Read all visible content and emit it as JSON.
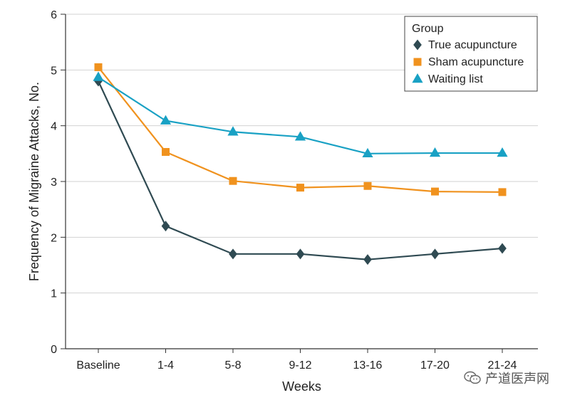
{
  "chart_data": {
    "type": "line",
    "xlabel": "Weeks",
    "ylabel": "Frequency of Migraine Attacks, No.",
    "ylim": [
      0,
      6
    ],
    "yticks": [
      0,
      1,
      2,
      3,
      4,
      5,
      6
    ],
    "grid": "horizontal",
    "categories": [
      "Baseline",
      "1-4",
      "5-8",
      "9-12",
      "13-16",
      "17-20",
      "21-24"
    ],
    "legend": {
      "title": "Group",
      "position": "top-right"
    },
    "series": [
      {
        "name": "True acupuncture",
        "marker": "diamond",
        "color": "#2f4a52",
        "values": [
          4.8,
          2.2,
          1.7,
          1.7,
          1.6,
          1.7,
          1.8
        ]
      },
      {
        "name": "Sham acupuncture",
        "marker": "square",
        "color": "#f0921e",
        "values": [
          5.05,
          3.53,
          3.01,
          2.89,
          2.92,
          2.82,
          2.81
        ]
      },
      {
        "name": "Waiting list",
        "marker": "triangle",
        "color": "#19a1c4",
        "values": [
          4.87,
          4.09,
          3.89,
          3.8,
          3.5,
          3.51,
          3.51
        ]
      }
    ]
  },
  "watermark": {
    "text": "产道医声网"
  }
}
